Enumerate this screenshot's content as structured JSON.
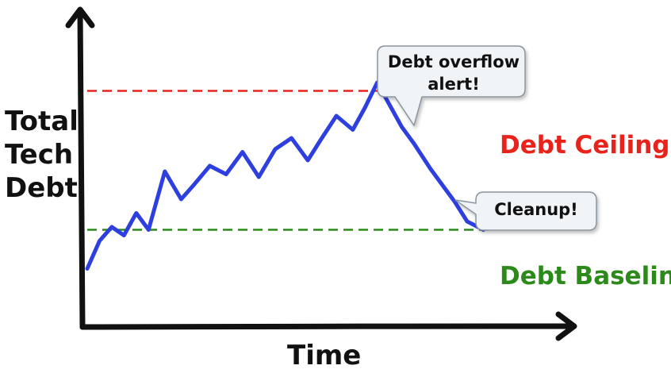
{
  "chart_data": {
    "type": "line",
    "ylabel": [
      "Total",
      "Tech",
      "Debt"
    ],
    "xlabel": "Time",
    "reference_lines": {
      "ceiling": {
        "label": "Debt Ceiling",
        "color": "#e8231c",
        "value": 85
      },
      "baseline": {
        "label": "Debt Baseline",
        "color": "#2c8a1a",
        "value": 35
      }
    },
    "series": [
      {
        "color": "#2e3fe0",
        "x": [
          0,
          3,
          6,
          9,
          12,
          15,
          19,
          23,
          26,
          30,
          34,
          38,
          42,
          46,
          50,
          54,
          57,
          61,
          65,
          68,
          71,
          74,
          77,
          80,
          84,
          87,
          90,
          93,
          97
        ],
        "y": [
          21,
          31,
          36,
          33,
          41,
          35,
          56,
          46,
          51,
          58,
          55,
          63,
          54,
          64,
          68,
          60,
          67,
          76,
          71,
          79,
          88,
          80,
          72,
          66,
          57,
          51,
          45,
          38,
          35
        ]
      }
    ],
    "xlim": [
      0,
      100
    ],
    "ylim": [
      0,
      112
    ],
    "annotations": [
      {
        "text": [
          "Debt overflow",
          "alert!"
        ],
        "points_to": "peak"
      },
      {
        "text": [
          "Cleanup!"
        ],
        "points_to": "descent"
      }
    ],
    "grid": false
  }
}
